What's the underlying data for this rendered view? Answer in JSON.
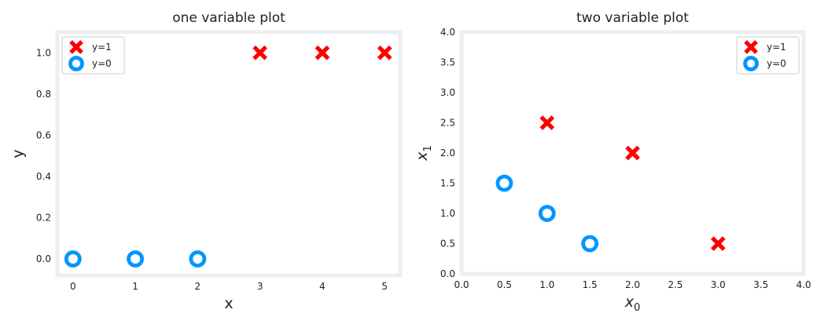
{
  "colors": {
    "positive": "#ff0000",
    "negative": "#0096ff",
    "frame": "#eeeeee",
    "legend_border": "#cccccc",
    "text": "#222222"
  },
  "chart_data": [
    {
      "type": "scatter",
      "title": "one variable plot",
      "xlabel": "x",
      "ylabel": "y",
      "xlabel_sub": "",
      "ylabel_sub": "",
      "xlim": [
        -0.25,
        5.25
      ],
      "ylim": [
        -0.08,
        1.1
      ],
      "xticks": [
        0,
        1,
        2,
        3,
        4,
        5
      ],
      "xtick_labels": [
        "0",
        "1",
        "2",
        "3",
        "4",
        "5"
      ],
      "yticks": [
        0.0,
        0.2,
        0.4,
        0.6,
        0.8,
        1.0
      ],
      "ytick_labels": [
        "0.0",
        "0.2",
        "0.4",
        "0.6",
        "0.8",
        "1.0"
      ],
      "grid": false,
      "legend_position": "upper-left",
      "series": [
        {
          "name": "y=1",
          "marker": "x",
          "color": "#ff0000",
          "points": [
            [
              3,
              1
            ],
            [
              4,
              1
            ],
            [
              5,
              1
            ]
          ]
        },
        {
          "name": "y=0",
          "marker": "o",
          "color": "#0096ff",
          "points": [
            [
              0,
              0
            ],
            [
              1,
              0
            ],
            [
              2,
              0
            ]
          ]
        }
      ]
    },
    {
      "type": "scatter",
      "title": "two variable plot",
      "xlabel": "x",
      "ylabel": "x",
      "xlabel_sub": "0",
      "ylabel_sub": "1",
      "xlim": [
        0,
        4
      ],
      "ylim": [
        0,
        4
      ],
      "xticks": [
        0,
        0.5,
        1,
        1.5,
        2,
        2.5,
        3,
        3.5,
        4
      ],
      "xtick_labels": [
        "0.0",
        "0.5",
        "1.0",
        "1.5",
        "2.0",
        "2.5",
        "3.0",
        "3.5",
        "4.0"
      ],
      "yticks": [
        0,
        0.5,
        1,
        1.5,
        2,
        2.5,
        3,
        3.5,
        4
      ],
      "ytick_labels": [
        "0.0",
        "0.5",
        "1.0",
        "1.5",
        "2.0",
        "2.5",
        "3.0",
        "3.5",
        "4.0"
      ],
      "grid": false,
      "legend_position": "upper-right",
      "series": [
        {
          "name": "y=1",
          "marker": "x",
          "color": "#ff0000",
          "points": [
            [
              1,
              2.5
            ],
            [
              2,
              2
            ],
            [
              3,
              0.5
            ]
          ]
        },
        {
          "name": "y=0",
          "marker": "o",
          "color": "#0096ff",
          "points": [
            [
              0.5,
              1.5
            ],
            [
              1,
              1
            ],
            [
              1.5,
              0.5
            ]
          ]
        }
      ]
    }
  ]
}
